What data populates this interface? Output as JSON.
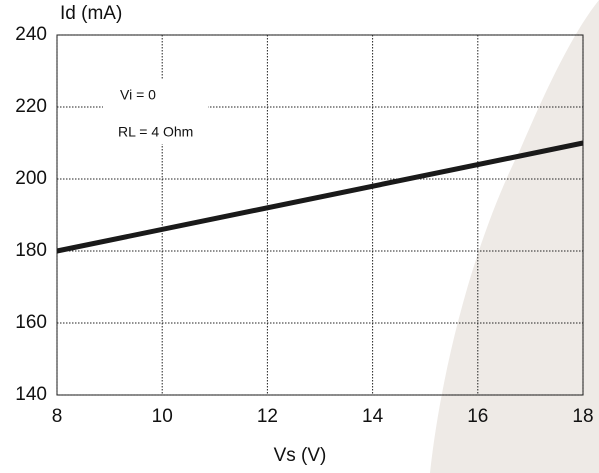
{
  "chart_data": {
    "type": "line",
    "y_label": "Id (mA)",
    "x_label": "Vs (V)",
    "annotations": [
      "Vi = 0",
      "RL = 4 Ohm"
    ],
    "x": [
      8,
      18
    ],
    "values": [
      180,
      210
    ],
    "color": "#1a1a1a",
    "xlim": [
      8,
      18
    ],
    "xticks": [
      8,
      10,
      12,
      14,
      16,
      18
    ],
    "ylim": [
      140,
      240
    ],
    "yticks": [
      140,
      160,
      180,
      200,
      220,
      240
    ],
    "grid": true
  }
}
